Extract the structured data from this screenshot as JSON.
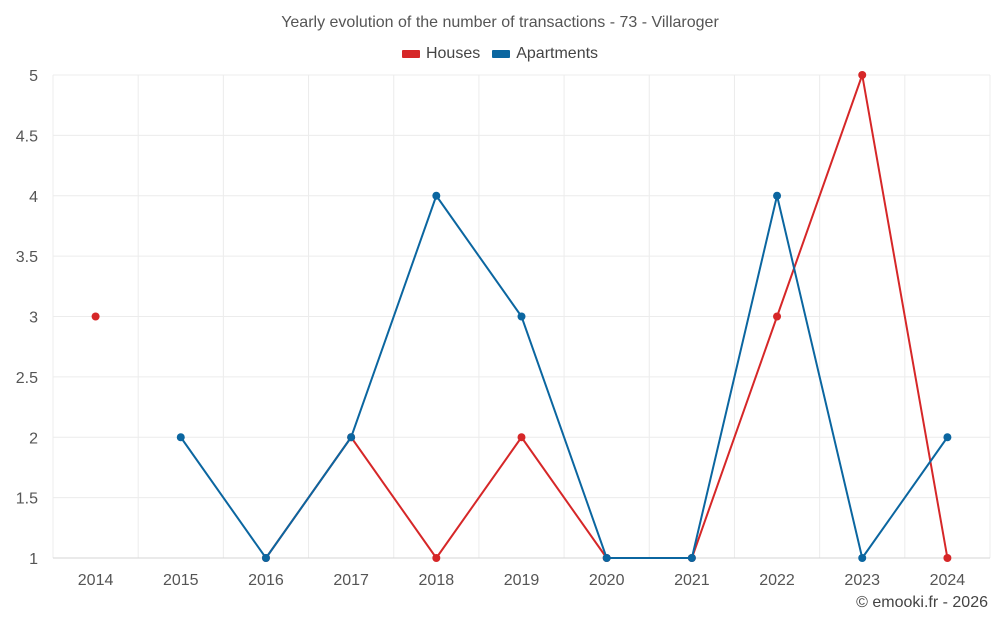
{
  "chart_data": {
    "type": "line",
    "title": "Yearly evolution of the number of transactions - 73 - Villaroger",
    "categories": [
      "2014",
      "2015",
      "2016",
      "2017",
      "2018",
      "2019",
      "2020",
      "2021",
      "2022",
      "2023",
      "2024"
    ],
    "series": [
      {
        "name": "Houses",
        "color": "#d62728",
        "values": [
          3,
          null,
          1,
          2,
          1,
          2,
          1,
          1,
          3,
          5,
          1
        ]
      },
      {
        "name": "Apartments",
        "color": "#0b66a0",
        "values": [
          null,
          2,
          1,
          2,
          4,
          3,
          1,
          1,
          4,
          1,
          2
        ]
      }
    ],
    "ylim": [
      1,
      5
    ],
    "yticks": [
      "1",
      "1.5",
      "2",
      "2.5",
      "3",
      "3.5",
      "4",
      "4.5",
      "5"
    ],
    "xlabel": "",
    "ylabel": "",
    "grid": true,
    "legend_position": "top-center"
  },
  "footer": {
    "copyright": "© emooki.fr - 2026"
  }
}
